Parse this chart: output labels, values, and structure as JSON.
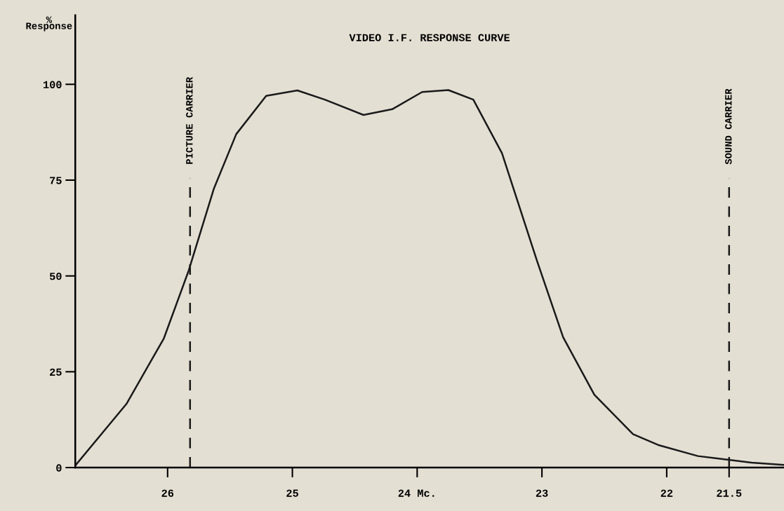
{
  "chart_data": {
    "type": "line",
    "title": "VIDEO I.F. RESPONSE CURVE",
    "ylabel": "%\nResponse",
    "x": [
      26.74,
      26.33,
      26.03,
      25.83,
      25.63,
      25.45,
      25.21,
      24.96,
      24.74,
      24.43,
      24.2,
      23.96,
      23.75,
      23.55,
      23.32,
      23.04,
      22.83,
      22.58,
      22.27,
      22.06,
      21.75,
      21.32,
      21.06
    ],
    "series": [
      {
        "color": "#1a1a1a",
        "values": [
          0.5,
          16.6,
          33.7,
          51.5,
          72.7,
          87,
          97,
          98.4,
          96,
          92,
          93.5,
          98,
          98.5,
          96,
          82,
          54,
          34,
          19,
          8.7,
          5.8,
          3,
          1.3,
          0.7
        ]
      }
    ],
    "xlim": [
      26.74,
      21.06
    ],
    "xticks": [
      26,
      25,
      {
        "value": 24,
        "label": "24 Mc."
      },
      23,
      22,
      21.5
    ],
    "ylim": [
      0,
      118
    ],
    "yticks": [
      0,
      25,
      50,
      75,
      100
    ],
    "ref_lines": [
      {
        "axis": "x",
        "value": 25.82,
        "label": "PICTURE CARRIER",
        "line_style": "dashed",
        "color": "#1a1a1a"
      },
      {
        "axis": "x",
        "value": 21.5,
        "label": "SOUND CARRIER",
        "line_style": "dashed",
        "color": "#1a1a1a"
      }
    ],
    "grid": false,
    "legend": false,
    "marker": "none",
    "line_style": "solid"
  }
}
